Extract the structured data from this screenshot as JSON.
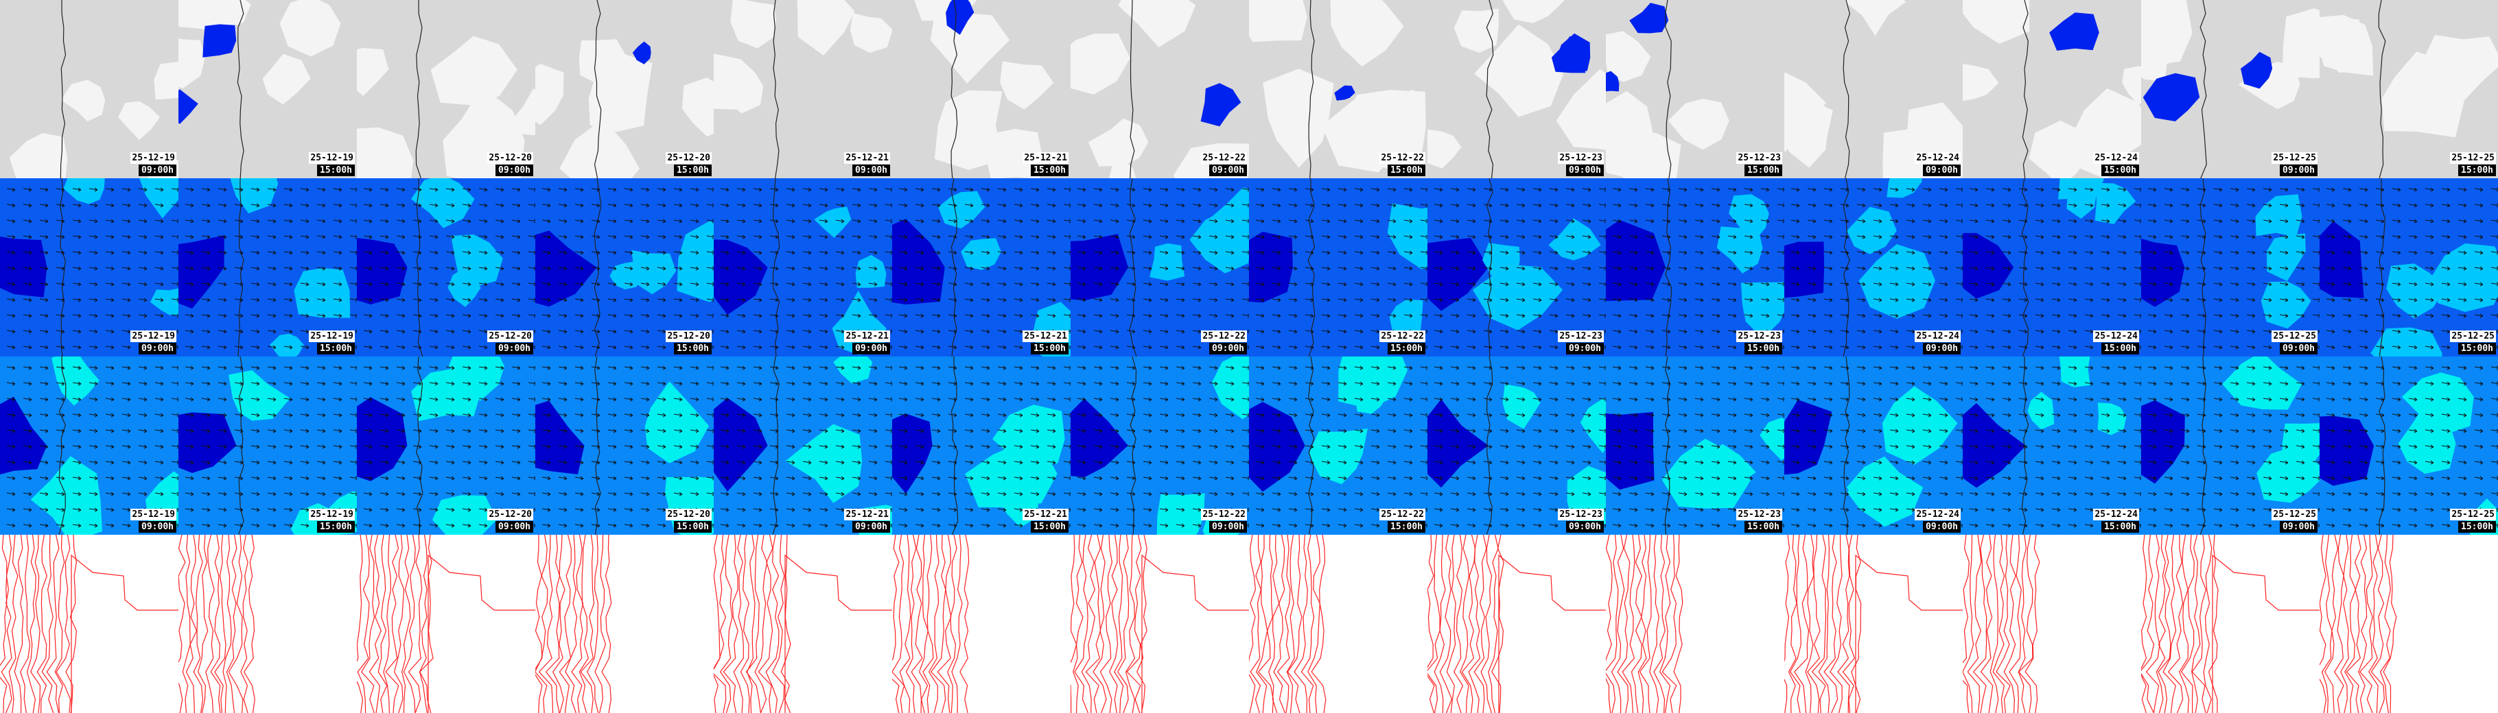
{
  "columns": [
    {
      "date": "25-12-19",
      "time": "09:00h"
    },
    {
      "date": "25-12-19",
      "time": "15:00h"
    },
    {
      "date": "25-12-20",
      "time": "09:00h"
    },
    {
      "date": "25-12-20",
      "time": "15:00h"
    },
    {
      "date": "25-12-21",
      "time": "09:00h"
    },
    {
      "date": "25-12-21",
      "time": "15:00h"
    },
    {
      "date": "25-12-22",
      "time": "09:00h"
    },
    {
      "date": "25-12-22",
      "time": "15:00h"
    },
    {
      "date": "25-12-23",
      "time": "09:00h"
    },
    {
      "date": "25-12-23",
      "time": "15:00h"
    },
    {
      "date": "25-12-24",
      "time": "09:00h"
    },
    {
      "date": "25-12-24",
      "time": "15:00h"
    },
    {
      "date": "25-12-25",
      "time": "09:00h"
    },
    {
      "date": "25-12-25",
      "time": "15:00h"
    }
  ],
  "rows": [
    {
      "name": "cloud-cover-map",
      "labeled": true,
      "colors": {
        "base": "#d8d8d8",
        "light": "#f4f4f4",
        "overlay": "#0022ee"
      }
    },
    {
      "name": "wind-map-upper",
      "labeled": true,
      "colors": {
        "base": "#0a5cf0",
        "dark": "#0000cc",
        "light": "#00c8ff"
      }
    },
    {
      "name": "wind-map-lower",
      "labeled": true,
      "colors": {
        "base": "#0a88f8",
        "dark": "#0000cc",
        "light": "#00f0f0"
      }
    },
    {
      "name": "pressure-isobar-map",
      "labeled": false,
      "colors": {
        "base": "#ffffff",
        "line": "#ff2020"
      }
    }
  ],
  "coastline_color": "#222222"
}
